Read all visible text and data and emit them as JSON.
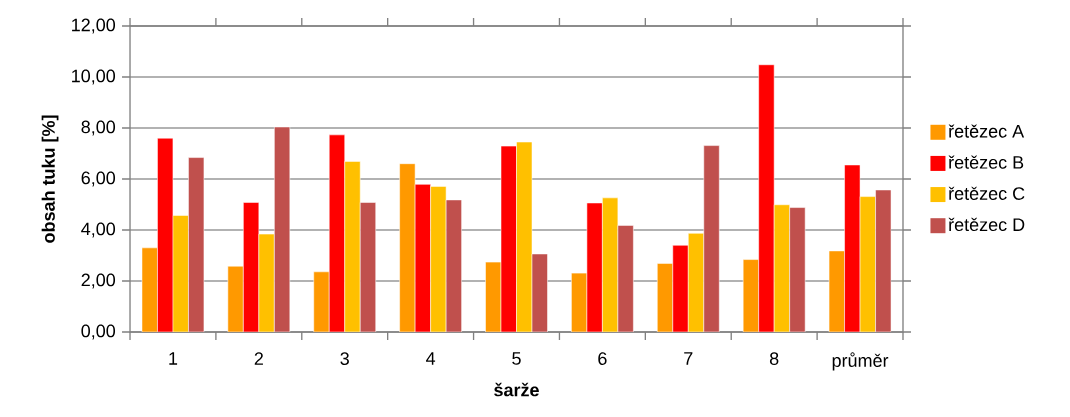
{
  "chart_data": {
    "type": "bar",
    "xlabel": "šarže",
    "ylabel": "obsah tuku [%]",
    "categories": [
      "1",
      "2",
      "3",
      "4",
      "5",
      "6",
      "7",
      "8",
      "průměr"
    ],
    "series": [
      {
        "name": "řetězec A",
        "color": "#ff9900",
        "values": [
          3.3,
          2.58,
          2.36,
          6.6,
          2.74,
          2.31,
          2.69,
          2.84,
          3.18
        ]
      },
      {
        "name": "řetězec B",
        "color": "#ff0000",
        "values": [
          7.6,
          5.08,
          7.73,
          5.79,
          7.29,
          5.06,
          3.4,
          10.48,
          6.55
        ]
      },
      {
        "name": "řetězec C",
        "color": "#ffc000",
        "values": [
          4.57,
          3.84,
          6.69,
          5.71,
          7.45,
          5.26,
          3.87,
          4.99,
          5.31
        ]
      },
      {
        "name": "řetězec D",
        "color": "#c0504d",
        "values": [
          6.84,
          8.04,
          5.08,
          5.18,
          3.06,
          4.18,
          7.31,
          4.88,
          5.57
        ]
      }
    ],
    "ylim": [
      0,
      12
    ],
    "yticks": [
      {
        "value": 0,
        "label": "0,00"
      },
      {
        "value": 2,
        "label": "2,00"
      },
      {
        "value": 4,
        "label": "4,00"
      },
      {
        "value": 6,
        "label": "6,00"
      },
      {
        "value": 8,
        "label": "8,00"
      },
      {
        "value": 10,
        "label": "10,00"
      },
      {
        "value": 12,
        "label": "12,00"
      }
    ],
    "grid": "y",
    "legend": "right"
  }
}
